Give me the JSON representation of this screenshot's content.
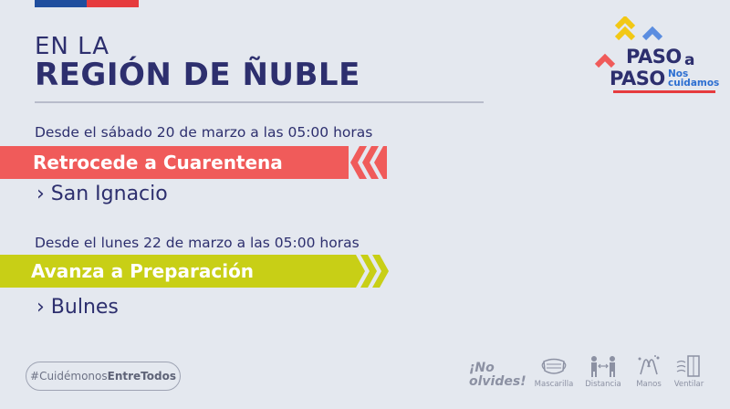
{
  "header": {
    "line1": "EN LA",
    "line2": "REGIÓN DE ÑUBLE"
  },
  "logo": {
    "paso": "PASO",
    "a": "a",
    "paso2": "PASO",
    "nos": "Nos",
    "cuidamos": "cuidamos"
  },
  "sections": [
    {
      "date": "Desde el sábado 20 de marzo a las 05:00 horas",
      "action": "Retrocede a Cuarentena",
      "place": "› San Ignacio",
      "color": "#f05b5a"
    },
    {
      "date": "Desde el lunes 22 de marzo a las 05:00 horas",
      "action": "Avanza a Preparación",
      "place": "› Bulnes",
      "color": "#c8cf16"
    }
  ],
  "footer": {
    "hashtag_prefix": "#Cuidémonos",
    "hashtag_bold": "EntreTodos",
    "reminder_line1": "¡No",
    "reminder_line2": "olvides!",
    "items": [
      {
        "label": "Mascarilla",
        "icon": "mask-icon"
      },
      {
        "label": "Distancia",
        "icon": "distance-icon"
      },
      {
        "label": "Manos",
        "icon": "hands-icon"
      },
      {
        "label": "Ventilar",
        "icon": "ventilate-icon"
      }
    ]
  }
}
